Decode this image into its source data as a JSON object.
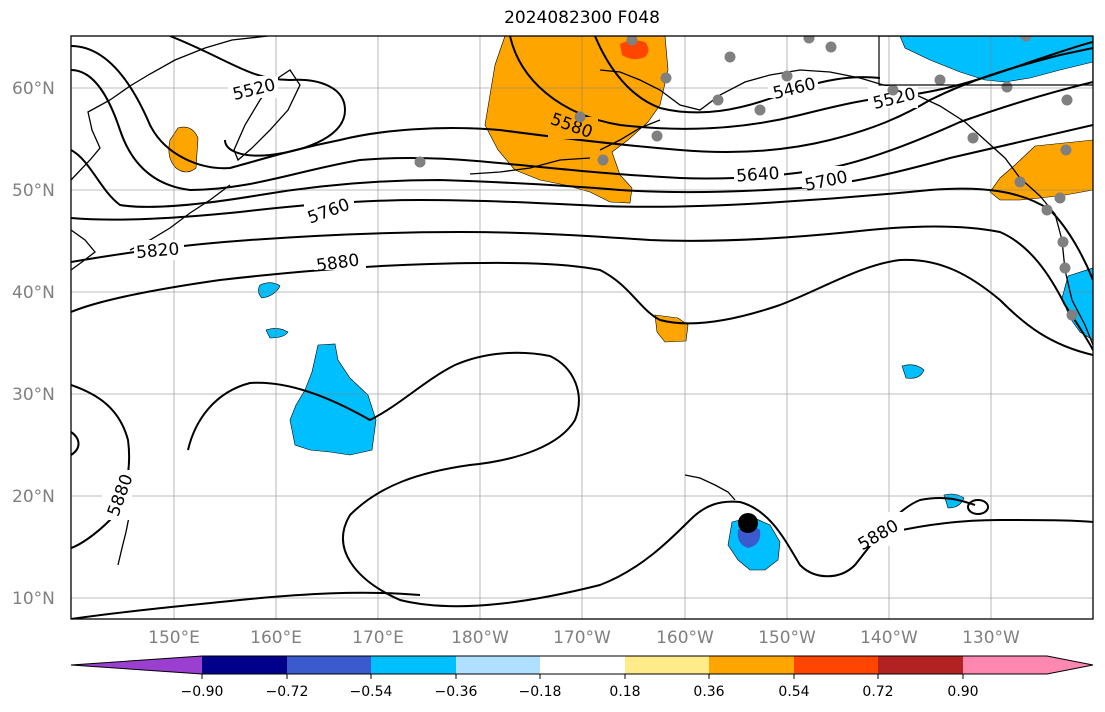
{
  "title": "2024082300 F048",
  "lat_labels": [
    "60°N",
    "50°N",
    "40°N",
    "30°N",
    "20°N",
    "10°N"
  ],
  "lon_labels": [
    "150°E",
    "160°E",
    "170°E",
    "180°W",
    "170°W",
    "160°W",
    "150°W",
    "140°W",
    "130°W"
  ],
  "colorbar": {
    "ticks": [
      "−0.90",
      "−0.72",
      "−0.54",
      "−0.36",
      "−0.18",
      "0.18",
      "0.36",
      "0.54",
      "0.72",
      "0.90"
    ],
    "colors": [
      "#9b3fd0",
      "#00008b",
      "#3a5acd",
      "#00bfff",
      "#b0e0ff",
      "#ffffff",
      "#ffeb8a",
      "#ffa500",
      "#ff4500",
      "#b22222",
      "#ff88b0"
    ]
  },
  "contour_labels": [
    "5520",
    "5460",
    "5520",
    "5580",
    "5640",
    "5700",
    "5760",
    "5820",
    "5880",
    "5880",
    "5880"
  ],
  "colors": {
    "contour": "#000000",
    "grid": "#808080",
    "orange": "#ffa500",
    "red_orange": "#ff4500",
    "cyan": "#00bfff",
    "royal": "#3a5acd",
    "station": "#808080"
  }
}
